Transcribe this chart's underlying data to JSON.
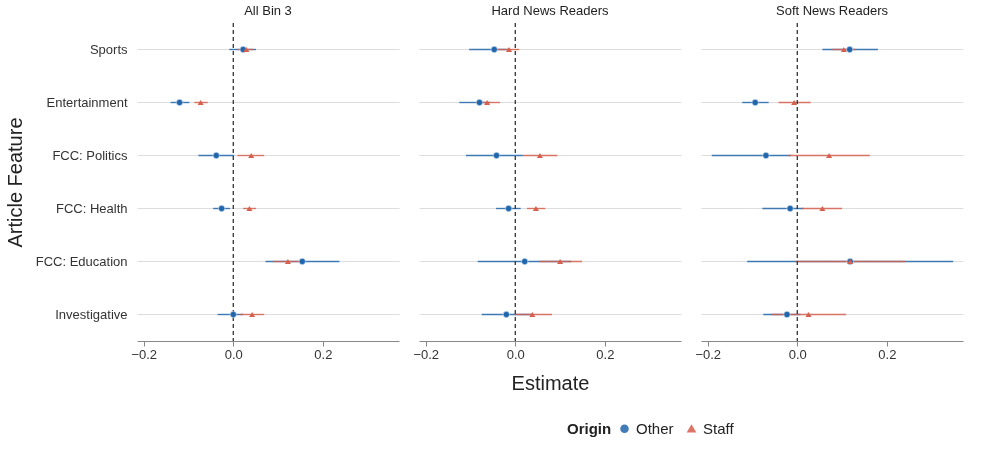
{
  "chart_data": [
    {
      "type": "scatter",
      "orientation": "horizontal",
      "title": "All Bin 3",
      "ylabel": "Article Feature",
      "legend": "bottom",
      "grid": "y",
      "tick_labels": true,
      "categories": [
        "Sports",
        "Entertainment",
        "FCC: Politics",
        "FCC: Health",
        "FCC: Education",
        "Investigative"
      ],
      "xlim": [
        -0.215,
        0.37
      ],
      "xticks": [
        {
          "value": -0.2,
          "label": "−0.2"
        },
        {
          "value": 0,
          "label": "0.0"
        },
        {
          "value": 0.2,
          "label": "0.2"
        }
      ],
      "ref_lines": [
        {
          "axis": "x",
          "value": 0,
          "color": "#333333",
          "line_style": "dashed"
        }
      ],
      "series": [
        {
          "name": "Other",
          "color": "#2166ac",
          "marker": "circle",
          "values": [
            0.022,
            -0.12,
            -0.038,
            -0.026,
            0.154,
            0.0
          ],
          "errors": [
            [
              -0.009,
              0.051
            ],
            [
              -0.14,
              -0.098
            ],
            [
              -0.078,
              0.002
            ],
            [
              -0.045,
              -0.007
            ],
            [
              0.072,
              0.237
            ],
            [
              -0.035,
              0.022
            ]
          ]
        },
        {
          "name": "Staff",
          "color": "#d6604d",
          "marker": "triangle",
          "values": [
            0.029,
            -0.073,
            0.04,
            0.036,
            0.122,
            0.042
          ],
          "errors": [
            [
              0.01,
              0.045
            ],
            [
              -0.087,
              -0.057
            ],
            [
              0.009,
              0.069
            ],
            [
              0.022,
              0.051
            ],
            [
              0.088,
              0.149
            ],
            [
              0.015,
              0.069
            ]
          ]
        }
      ]
    },
    {
      "type": "scatter",
      "orientation": "horizontal",
      "title": "Hard News Readers",
      "xlabel": "Estimate",
      "legend": "bottom",
      "grid": "y",
      "tick_labels": "x",
      "categories": [
        "Sports",
        "Entertainment",
        "FCC: Politics",
        "FCC: Health",
        "FCC: Education",
        "Investigative"
      ],
      "xlim": [
        -0.215,
        0.37
      ],
      "xticks": [
        {
          "value": -0.2,
          "label": "−0.2"
        },
        {
          "value": 0,
          "label": "0.0"
        },
        {
          "value": 0.2,
          "label": "0.2"
        }
      ],
      "ref_lines": [
        {
          "axis": "x",
          "value": 0,
          "color": "#333333",
          "line_style": "dashed"
        }
      ],
      "series": [
        {
          "name": "Other",
          "color": "#2166ac",
          "marker": "circle",
          "values": [
            -0.047,
            -0.08,
            -0.042,
            -0.015,
            0.021,
            -0.02
          ],
          "errors": [
            [
              -0.103,
              -0.012
            ],
            [
              -0.125,
              -0.056
            ],
            [
              -0.11,
              0.017
            ],
            [
              -0.043,
              0.012
            ],
            [
              -0.084,
              0.125
            ],
            [
              -0.075,
              0.038
            ]
          ]
        },
        {
          "name": "Staff",
          "color": "#d6604d",
          "marker": "triangle",
          "values": [
            -0.014,
            -0.063,
            0.055,
            0.046,
            0.1,
            0.038
          ],
          "errors": [
            [
              -0.041,
              0.009
            ],
            [
              -0.088,
              -0.034
            ],
            [
              0.017,
              0.094
            ],
            [
              0.026,
              0.067
            ],
            [
              0.053,
              0.149
            ],
            [
              -0.001,
              0.082
            ]
          ]
        }
      ]
    },
    {
      "type": "scatter",
      "orientation": "horizontal",
      "title": "Soft News Readers",
      "legend_title": "Origin",
      "legend": "bottom",
      "grid": "y",
      "tick_labels": "x",
      "categories": [
        "Sports",
        "Entertainment",
        "FCC: Politics",
        "FCC: Health",
        "FCC: Education",
        "Investigative"
      ],
      "xlim": [
        -0.215,
        0.37
      ],
      "xticks": [
        {
          "value": -0.2,
          "label": "−0.2"
        },
        {
          "value": 0,
          "label": "0.0"
        },
        {
          "value": 0.2,
          "label": "0.2"
        }
      ],
      "ref_lines": [
        {
          "axis": "x",
          "value": 0,
          "color": "#333333",
          "line_style": "dashed"
        }
      ],
      "series": [
        {
          "name": "Other",
          "color": "#2166ac",
          "marker": "circle",
          "values": [
            0.117,
            -0.094,
            -0.07,
            -0.016,
            0.118,
            -0.023
          ],
          "errors": [
            [
              0.056,
              0.18
            ],
            [
              -0.123,
              -0.064
            ],
            [
              -0.191,
              -0.014
            ],
            [
              -0.078,
              0.014
            ],
            [
              -0.112,
              0.348
            ],
            [
              -0.076,
              0.007
            ]
          ]
        },
        {
          "name": "Staff",
          "color": "#d6604d",
          "marker": "triangle",
          "values": [
            0.104,
            -0.007,
            0.071,
            0.056,
            0.118,
            0.025
          ],
          "errors": [
            [
              0.078,
              0.13
            ],
            [
              -0.042,
              0.03
            ],
            [
              -0.02,
              0.162
            ],
            [
              0.011,
              0.1
            ],
            [
              -0.004,
              0.241
            ],
            [
              -0.058,
              0.109
            ]
          ]
        }
      ]
    }
  ]
}
